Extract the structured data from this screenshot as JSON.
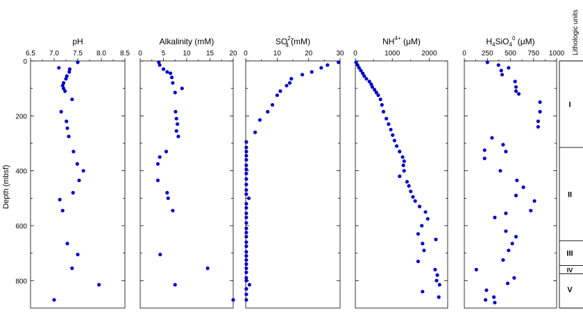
{
  "figure": {
    "y_axis_label": "Depth (mbsf)",
    "lith_header": "Lithologic units"
  },
  "chart_data": [
    {
      "type": "scatter",
      "title": "pH",
      "xlim": [
        6.5,
        8.5
      ],
      "xticks": [
        "6.5",
        "7.0",
        "7.5",
        "8.0",
        "8.5"
      ],
      "ylim": [
        0,
        900
      ],
      "yticks": [
        "0",
        "200",
        "400",
        "600",
        "800"
      ],
      "marker_color": "#0000cc",
      "series": [
        {
          "x": [
            7.5,
            7.1,
            7.33,
            7.32,
            7.27,
            7.25,
            7.2,
            7.18,
            7.2,
            7.23,
            7.38,
            7.15,
            7.26,
            7.28,
            7.31,
            7.41,
            7.49,
            7.62,
            7.53,
            7.4,
            7.12,
            7.18,
            7.28,
            7.5,
            7.38,
            7.95,
            7.0
          ],
          "y": [
            5,
            25,
            30,
            40,
            55,
            65,
            80,
            90,
            100,
            110,
            140,
            185,
            220,
            245,
            275,
            330,
            375,
            400,
            435,
            480,
            505,
            545,
            665,
            705,
            755,
            815,
            870
          ]
        }
      ]
    },
    {
      "type": "scatter",
      "title": "Alkalinity (mM)",
      "xlim": [
        0,
        20
      ],
      "xticks": [
        "0",
        "5",
        "10",
        "15",
        "20"
      ],
      "ylim": [
        0,
        900
      ],
      "yticks": [
        "0",
        "200",
        "400",
        "600",
        "800"
      ],
      "marker_color": "#0000cc",
      "series": [
        {
          "x": [
            4.0,
            4.2,
            5.0,
            5.8,
            6.5,
            6.8,
            7.0,
            9.0,
            7.5,
            7.6,
            7.8,
            8.0,
            7.8,
            8.2,
            5.6,
            4.2,
            3.8,
            3.8,
            5.8,
            6.0,
            7.0,
            4.3,
            14.5,
            7.5,
            20.0
          ],
          "y": [
            5,
            15,
            30,
            40,
            45,
            60,
            80,
            100,
            115,
            185,
            210,
            230,
            255,
            275,
            330,
            350,
            375,
            435,
            480,
            500,
            545,
            705,
            755,
            815,
            870
          ]
        }
      ]
    },
    {
      "type": "scatter",
      "title": "SO",
      "title_sub": "4",
      "title_sup": "2−",
      "title_tail": " (mM)",
      "xlim": [
        0,
        30
      ],
      "xticks": [
        "0",
        "10",
        "20",
        "30"
      ],
      "ylim": [
        0,
        900
      ],
      "yticks": [
        "0",
        "200",
        "400",
        "600",
        "800"
      ],
      "marker_color": "#0000cc",
      "series": [
        {
          "x": [
            29.5,
            26.0,
            24.0,
            21.0,
            18.0,
            14.5,
            14.0,
            13.0,
            11.0,
            10.0,
            8.5,
            7.0,
            4.5,
            3.0,
            0.2,
            0.2,
            0.2,
            0.2,
            0.2,
            0.2,
            0.2,
            0.2,
            0.2,
            0.2,
            0.2,
            0.2,
            1.0,
            0.2,
            0.2,
            0.2,
            0.2,
            0.2,
            0.2,
            0.2,
            0.2,
            0.2,
            0.2,
            0.2,
            0.2,
            0.2,
            0.2,
            0.2,
            0.2,
            0.2,
            0.2,
            1.2,
            0.2,
            0.2,
            0.2
          ],
          "y": [
            5,
            15,
            25,
            40,
            50,
            65,
            80,
            90,
            110,
            125,
            160,
            185,
            215,
            260,
            295,
            315,
            330,
            345,
            360,
            380,
            395,
            410,
            430,
            450,
            470,
            485,
            500,
            520,
            535,
            555,
            570,
            590,
            610,
            625,
            640,
            660,
            675,
            695,
            710,
            725,
            740,
            755,
            770,
            790,
            800,
            815,
            830,
            850,
            870
          ]
        }
      ]
    },
    {
      "type": "scatter",
      "title": "NH",
      "title_sup": "4+",
      "title_tail": " (μM)",
      "xlim": [
        0,
        2500
      ],
      "xticks": [
        "0",
        "1000",
        "2000"
      ],
      "ylim": [
        0,
        900
      ],
      "yticks": [
        "0",
        "200",
        "400",
        "600",
        "800"
      ],
      "marker_color": "#0000cc",
      "series": [
        {
          "x": [
            20,
            60,
            100,
            150,
            200,
            240,
            300,
            380,
            430,
            460,
            520,
            570,
            620,
            680,
            720,
            760,
            840,
            900,
            960,
            1010,
            1060,
            1120,
            1200,
            1280,
            1320,
            1300,
            1320,
            1200,
            1400,
            1450,
            1500,
            1560,
            1620,
            1740,
            1900,
            1960,
            1800,
            1700,
            2180,
            1820,
            1860,
            1700,
            2160,
            2220,
            2200,
            2280,
            1820,
            2260
          ],
          "y": [
            5,
            15,
            25,
            35,
            45,
            55,
            65,
            75,
            85,
            95,
            105,
            115,
            125,
            140,
            160,
            185,
            210,
            230,
            250,
            270,
            290,
            310,
            330,
            350,
            365,
            380,
            400,
            420,
            440,
            455,
            475,
            495,
            510,
            530,
            550,
            575,
            600,
            630,
            650,
            665,
            690,
            730,
            760,
            780,
            800,
            815,
            840,
            860
          ]
        }
      ]
    },
    {
      "type": "scatter",
      "title": "H",
      "title_sub": "4",
      "title_tail2": "SiO",
      "title_sub2": "4",
      "title_sup": "0",
      "title_tail": " (μM)",
      "xlim": [
        0,
        1000
      ],
      "xticks": [
        "0",
        "250",
        "500",
        "750",
        "1000"
      ],
      "ylim": [
        0,
        900
      ],
      "yticks": [
        "0",
        "200",
        "400",
        "600",
        "800"
      ],
      "marker_color": "#0000cc",
      "series": [
        {
          "x": [
            250,
            370,
            480,
            400,
            410,
            550,
            560,
            560,
            590,
            820,
            820,
            800,
            800,
            300,
            420,
            220,
            450,
            220,
            390,
            570,
            640,
            560,
            760,
            720,
            450,
            330,
            450,
            560,
            520,
            480,
            420,
            130,
            540,
            470,
            240,
            320,
            230,
            330
          ],
          "y": [
            5,
            15,
            25,
            35,
            50,
            75,
            95,
            110,
            120,
            150,
            185,
            220,
            240,
            280,
            305,
            325,
            330,
            355,
            400,
            435,
            460,
            490,
            510,
            545,
            555,
            570,
            620,
            640,
            665,
            690,
            725,
            760,
            790,
            810,
            835,
            860,
            870,
            880
          ]
        }
      ]
    }
  ],
  "lithology": {
    "units": [
      {
        "label": "I",
        "top": 0,
        "bottom": 315
      },
      {
        "label": "II",
        "top": 315,
        "bottom": 655
      },
      {
        "label": "III",
        "top": 655,
        "bottom": 745
      },
      {
        "label": "IV",
        "top": 745,
        "bottom": 775
      },
      {
        "label": "V",
        "top": 775,
        "bottom": 890
      }
    ]
  }
}
